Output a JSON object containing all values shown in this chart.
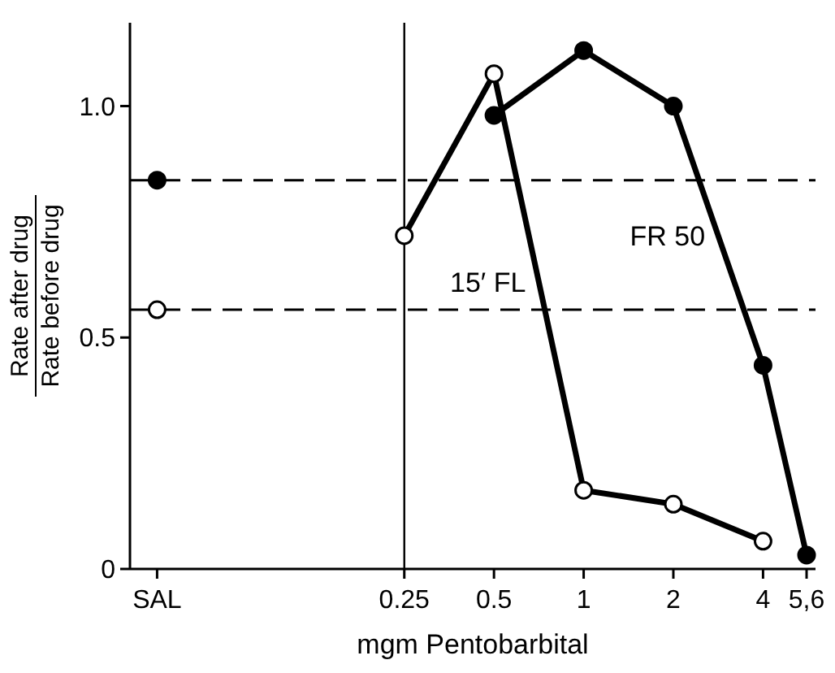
{
  "chart_data": {
    "type": "line",
    "xlabel": "mgm Pentobarbital",
    "ylabel": "Rate after drug\nRate before drug",
    "log": "x",
    "xlim": [
      0.03,
      6
    ],
    "ylim": [
      0,
      1.18
    ],
    "xticks": [
      {
        "value": 0.037,
        "label": "SAL"
      },
      0.25,
      0.5,
      1,
      2,
      4,
      {
        "value": 5.6,
        "label": "5,6"
      }
    ],
    "yticks": [
      0,
      0.5,
      {
        "value": 1,
        "label": "1.0"
      }
    ],
    "marker": "circle",
    "line_style": "solid",
    "series": [
      {
        "name": "FR 50",
        "color": "#000000",
        "x": [
          0.5,
          1,
          2,
          4,
          5.6
        ],
        "values": [
          0.98,
          1.12,
          1.0,
          0.44,
          0.03
        ],
        "colors": [
          "#000000",
          "#000000",
          "#000000",
          "#000000",
          "#000000"
        ]
      },
      {
        "name": "15′ FL",
        "color": "#000000",
        "x": [
          0.25,
          0.5,
          1,
          2,
          4
        ],
        "values": [
          0.72,
          1.07,
          0.17,
          0.14,
          0.06
        ],
        "colors": [
          "#ffffff",
          "#ffffff",
          "#ffffff",
          "#ffffff",
          "#ffffff"
        ]
      },
      {
        "type": "scatter",
        "color": "#000000",
        "x": [
          0.037
        ],
        "values": [
          0.84
        ],
        "colors": [
          "#000000"
        ]
      },
      {
        "type": "scatter",
        "color": "#000000",
        "x": [
          0.037
        ],
        "values": [
          0.56
        ],
        "colors": [
          "#ffffff"
        ]
      }
    ],
    "ref_lines": [
      {
        "axis": "x",
        "value": 0.25,
        "line_style": "solid",
        "color": "#000000"
      },
      {
        "axis": "y",
        "value": 0.84,
        "line_style": "dashed",
        "color": "#000000"
      },
      {
        "axis": "y",
        "value": 0.56,
        "line_style": "dashed",
        "color": "#000000"
      }
    ]
  }
}
